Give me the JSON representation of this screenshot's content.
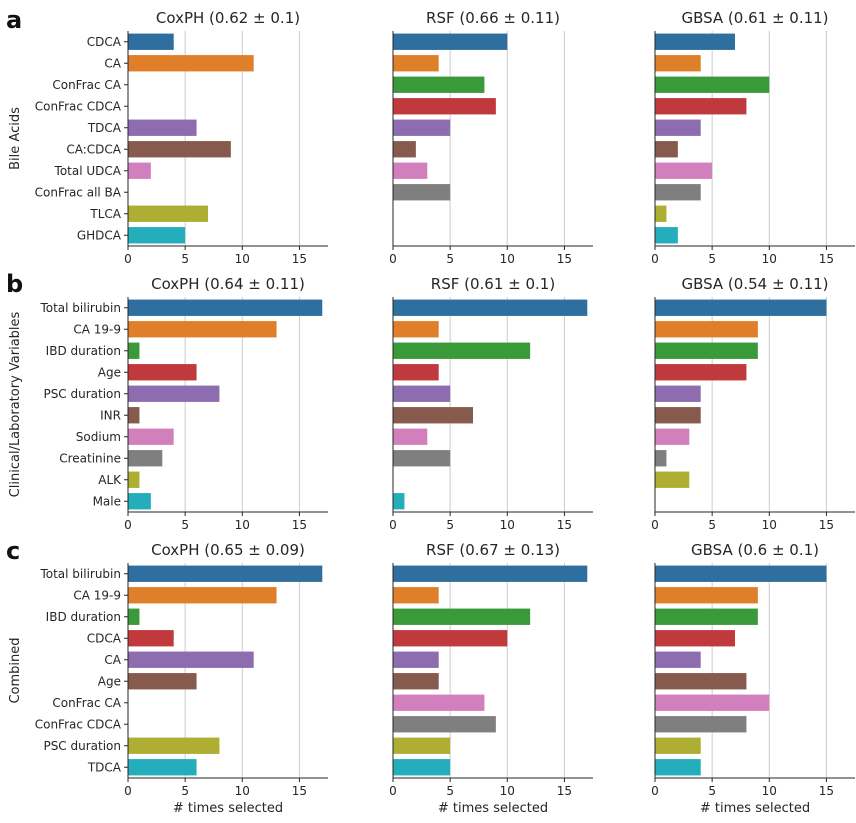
{
  "colors": [
    "#2f6f9f",
    "#e07f2a",
    "#3a9a3a",
    "#c0393c",
    "#8d6cb0",
    "#865a4d",
    "#d27fbe",
    "#7f7f7f",
    "#aeae32",
    "#24aebb"
  ],
  "chart_data": [
    {
      "panel": "a",
      "ylabel": "Bile Acids",
      "categories": [
        "CDCA",
        "CA",
        "ConFrac CA",
        "ConFrac CDCA",
        "TDCA",
        "CA:CDCA",
        "Total UDCA",
        "ConFrac all BA",
        "TLCA",
        "GHDCA"
      ],
      "subplots": [
        {
          "type": "bar",
          "title": "CoxPH (0.62 ± 0.1)",
          "values": [
            4,
            11,
            0,
            0,
            6,
            9,
            2,
            0,
            7,
            5
          ],
          "xlim": [
            0,
            17.5
          ],
          "xticks": [
            0,
            5,
            10,
            15
          ]
        },
        {
          "type": "bar",
          "title": "RSF (0.66 ± 0.11)",
          "values": [
            10,
            4,
            8,
            9,
            5,
            2,
            3,
            5,
            0,
            0
          ],
          "xlim": [
            0,
            17.5
          ],
          "xticks": [
            0,
            5,
            10,
            15
          ]
        },
        {
          "type": "bar",
          "title": "GBSA (0.61 ± 0.11)",
          "values": [
            7,
            4,
            10,
            8,
            4,
            2,
            5,
            4,
            1,
            2
          ],
          "xlim": [
            0,
            17.5
          ],
          "xticks": [
            0,
            5,
            10,
            15
          ]
        }
      ]
    },
    {
      "panel": "b",
      "ylabel": "Clinical/Laboratory Variables",
      "categories": [
        "Total bilirubin",
        "CA 19-9",
        "IBD duration",
        "Age",
        "PSC duration",
        "INR",
        "Sodium",
        "Creatinine",
        "ALK",
        "Male"
      ],
      "subplots": [
        {
          "type": "bar",
          "title": "CoxPH (0.64 ± 0.11)",
          "values": [
            17,
            13,
            1,
            6,
            8,
            1,
            4,
            3,
            1,
            2
          ],
          "xlim": [
            0,
            17.5
          ],
          "xticks": [
            0,
            5,
            10,
            15
          ]
        },
        {
          "type": "bar",
          "title": "RSF (0.61 ± 0.1)",
          "values": [
            17,
            4,
            12,
            4,
            5,
            7,
            3,
            5,
            0,
            1
          ],
          "xlim": [
            0,
            17.5
          ],
          "xticks": [
            0,
            5,
            10,
            15
          ]
        },
        {
          "type": "bar",
          "title": "GBSA (0.54 ± 0.11)",
          "values": [
            15,
            9,
            9,
            8,
            4,
            4,
            3,
            1,
            3,
            0
          ],
          "xlim": [
            0,
            17.5
          ],
          "xticks": [
            0,
            5,
            10,
            15
          ]
        }
      ]
    },
    {
      "panel": "c",
      "ylabel": "Combined",
      "categories": [
        "Total bilirubin",
        "CA 19-9",
        "IBD duration",
        "CDCA",
        "CA",
        "Age",
        "ConFrac CA",
        "ConFrac CDCA",
        "PSC duration",
        "TDCA"
      ],
      "subplots": [
        {
          "type": "bar",
          "title": "CoxPH (0.65 ± 0.09)",
          "xlabel": "# times selected",
          "values": [
            17,
            13,
            1,
            4,
            11,
            6,
            0,
            0,
            8,
            6
          ],
          "xlim": [
            0,
            17.5
          ],
          "xticks": [
            0,
            5,
            10,
            15
          ]
        },
        {
          "type": "bar",
          "title": "RSF (0.67 ± 0.13)",
          "xlabel": "# times selected",
          "values": [
            17,
            4,
            12,
            10,
            4,
            4,
            8,
            9,
            5,
            5
          ],
          "xlim": [
            0,
            17.5
          ],
          "xticks": [
            0,
            5,
            10,
            15
          ]
        },
        {
          "type": "bar",
          "title": "GBSA (0.6 ± 0.1)",
          "xlabel": "# times selected",
          "values": [
            15,
            9,
            9,
            7,
            4,
            8,
            10,
            8,
            4,
            4
          ],
          "xlim": [
            0,
            17.5
          ],
          "xticks": [
            0,
            5,
            10,
            15
          ]
        }
      ]
    }
  ]
}
